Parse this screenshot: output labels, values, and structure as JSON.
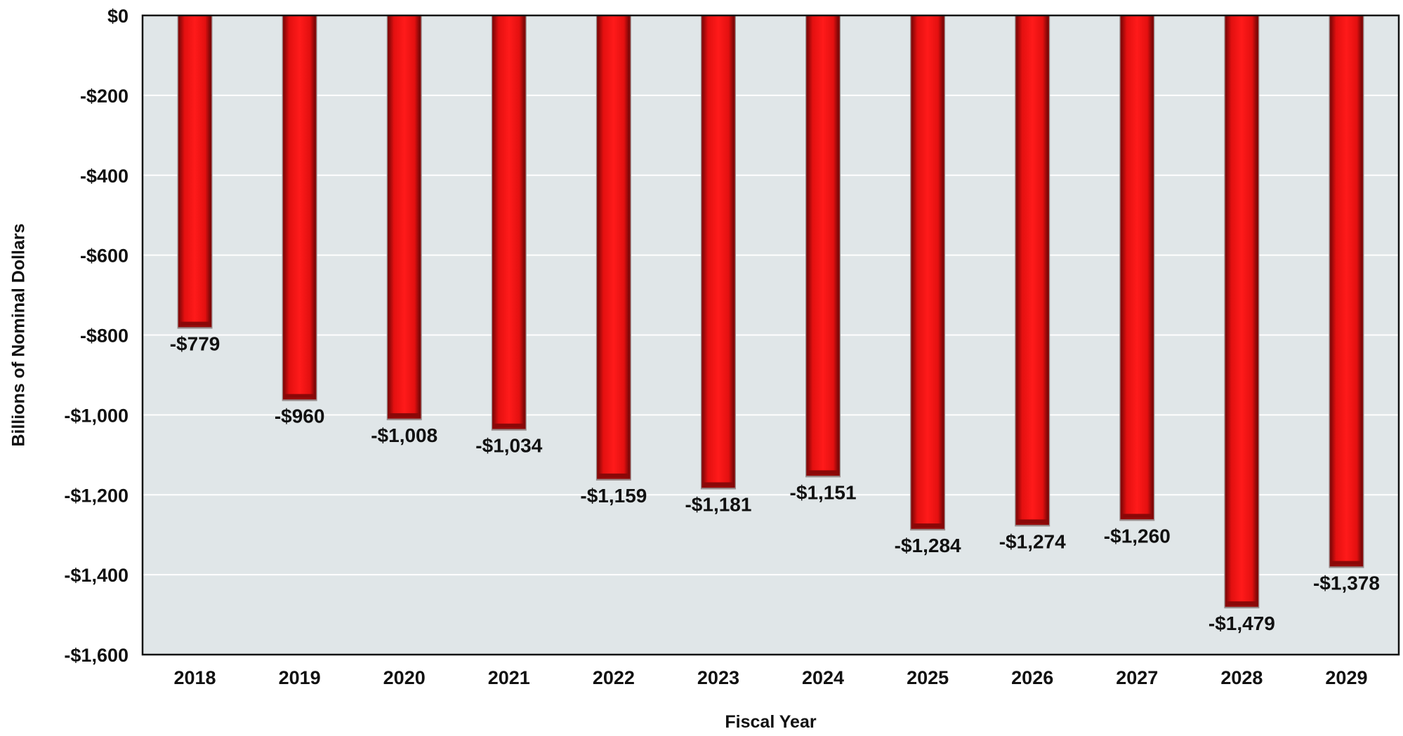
{
  "chart_data": {
    "type": "bar",
    "title": "",
    "xlabel": "Fiscal Year",
    "ylabel": "Billions of Nominal Dollars",
    "categories": [
      "2018",
      "2019",
      "2020",
      "2021",
      "2022",
      "2023",
      "2024",
      "2025",
      "2026",
      "2027",
      "2028",
      "2029"
    ],
    "values": [
      -779,
      -960,
      -1008,
      -1034,
      -1159,
      -1181,
      -1151,
      -1284,
      -1274,
      -1260,
      -1479,
      -1378
    ],
    "data_labels": [
      "-$779",
      "-$960",
      "-$1,008",
      "-$1,034",
      "-$1,159",
      "-$1,181",
      "-$1,151",
      "-$1,284",
      "-$1,274",
      "-$1,260",
      "-$1,479",
      "-$1,378"
    ],
    "ylim": [
      -1600,
      0
    ],
    "yticks": [
      0,
      -200,
      -400,
      -600,
      -800,
      -1000,
      -1200,
      -1400,
      -1600
    ],
    "ytick_labels": [
      "$0",
      "-$200",
      "-$400",
      "-$600",
      "-$800",
      "-$1,000",
      "-$1,200",
      "-$1,400",
      "-$1,600"
    ],
    "grid": true,
    "legend": "none",
    "colors": {
      "bar": "#ee1111",
      "bar_edge": "#8a0a0a",
      "plot_background": "#e0e6e8",
      "gridline": "#ffffff",
      "axis": "#111111"
    }
  }
}
